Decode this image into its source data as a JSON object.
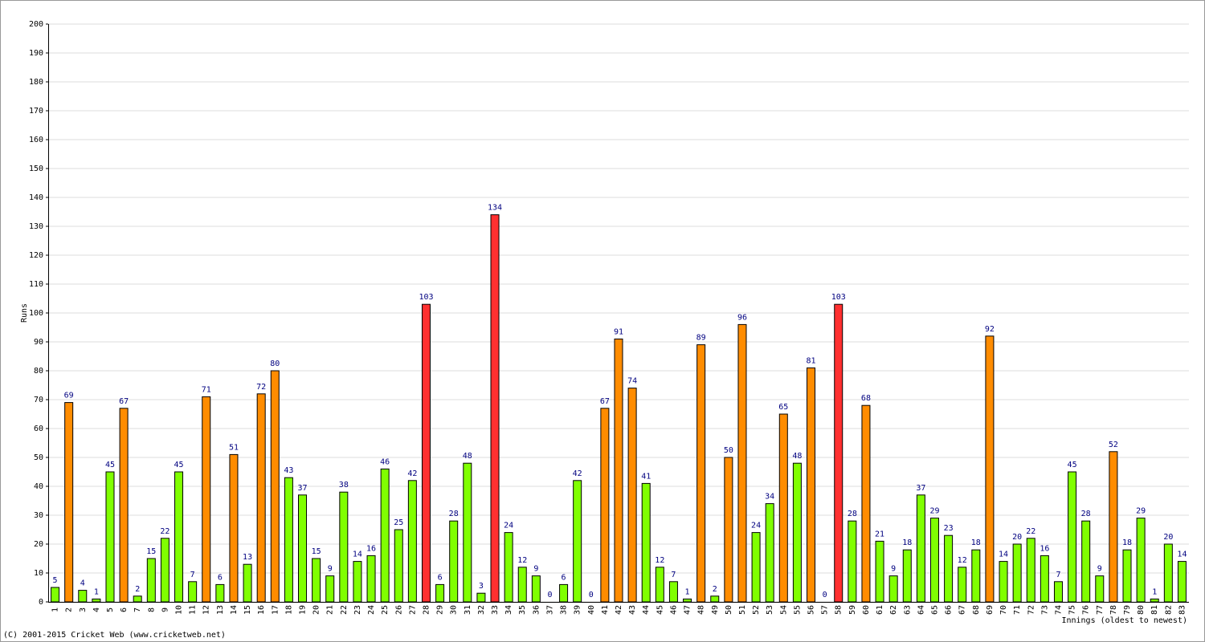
{
  "chart_data": {
    "type": "bar",
    "y_label": "Runs",
    "x_label": "Innings (oldest to newest)",
    "footer": "(C) 2001-2015 Cricket Web (www.cricketweb.net)",
    "categories": [
      "1",
      "2",
      "3",
      "4",
      "5",
      "6",
      "7",
      "8",
      "9",
      "10",
      "11",
      "12",
      "13",
      "14",
      "15",
      "16",
      "17",
      "18",
      "19",
      "20",
      "21",
      "22",
      "23",
      "24",
      "25",
      "26",
      "27",
      "28",
      "29",
      "30",
      "31",
      "32",
      "33",
      "34",
      "35",
      "36",
      "37",
      "38",
      "39",
      "40",
      "41",
      "42",
      "43",
      "44",
      "45",
      "46",
      "47",
      "48",
      "49",
      "50",
      "51",
      "52",
      "53",
      "54",
      "55",
      "56",
      "57",
      "58",
      "59",
      "60",
      "61",
      "62",
      "63",
      "64",
      "65",
      "66",
      "67",
      "68",
      "69",
      "70",
      "71",
      "72",
      "73",
      "74",
      "75",
      "76",
      "77",
      "78",
      "79",
      "80",
      "81",
      "82",
      "83"
    ],
    "values": [
      5,
      69,
      4,
      1,
      45,
      67,
      2,
      15,
      22,
      45,
      7,
      71,
      6,
      51,
      13,
      72,
      80,
      43,
      37,
      15,
      9,
      38,
      14,
      16,
      46,
      25,
      42,
      103,
      6,
      28,
      48,
      3,
      134,
      24,
      12,
      9,
      0,
      6,
      42,
      0,
      67,
      91,
      74,
      41,
      12,
      7,
      1,
      89,
      2,
      50,
      96,
      24,
      34,
      65,
      48,
      81,
      0,
      103,
      28,
      68,
      21,
      9,
      18,
      37,
      29,
      23,
      12,
      18,
      92,
      14,
      20,
      22,
      16,
      7,
      45,
      28,
      9,
      52,
      18,
      29,
      1,
      20,
      14
    ],
    "colors": [
      "#80ff00",
      "#ff8c00",
      "#80ff00",
      "#80ff00",
      "#80ff00",
      "#ff8c00",
      "#80ff00",
      "#80ff00",
      "#80ff00",
      "#80ff00",
      "#80ff00",
      "#ff8c00",
      "#80ff00",
      "#ff8c00",
      "#80ff00",
      "#ff8c00",
      "#ff8c00",
      "#80ff00",
      "#80ff00",
      "#80ff00",
      "#80ff00",
      "#80ff00",
      "#80ff00",
      "#80ff00",
      "#80ff00",
      "#80ff00",
      "#80ff00",
      "#ff3030",
      "#80ff00",
      "#80ff00",
      "#80ff00",
      "#80ff00",
      "#ff3030",
      "#80ff00",
      "#80ff00",
      "#80ff00",
      "#80ff00",
      "#80ff00",
      "#80ff00",
      "#80ff00",
      "#ff8c00",
      "#ff8c00",
      "#ff8c00",
      "#80ff00",
      "#80ff00",
      "#80ff00",
      "#80ff00",
      "#ff8c00",
      "#80ff00",
      "#ff8c00",
      "#ff8c00",
      "#80ff00",
      "#80ff00",
      "#ff8c00",
      "#80ff00",
      "#ff8c00",
      "#80ff00",
      "#ff3030",
      "#80ff00",
      "#ff8c00",
      "#80ff00",
      "#80ff00",
      "#80ff00",
      "#80ff00",
      "#80ff00",
      "#80ff00",
      "#80ff00",
      "#80ff00",
      "#ff8c00",
      "#80ff00",
      "#80ff00",
      "#80ff00",
      "#80ff00",
      "#80ff00",
      "#80ff00",
      "#80ff00",
      "#80ff00",
      "#ff8c00",
      "#80ff00",
      "#80ff00",
      "#80ff00",
      "#80ff00",
      "#80ff00"
    ],
    "ylim": [
      0,
      200
    ],
    "yticks": [
      0,
      10,
      20,
      30,
      40,
      50,
      60,
      70,
      80,
      90,
      100,
      110,
      120,
      130,
      140,
      150,
      160,
      170,
      180,
      190,
      200
    ],
    "grid": true
  }
}
